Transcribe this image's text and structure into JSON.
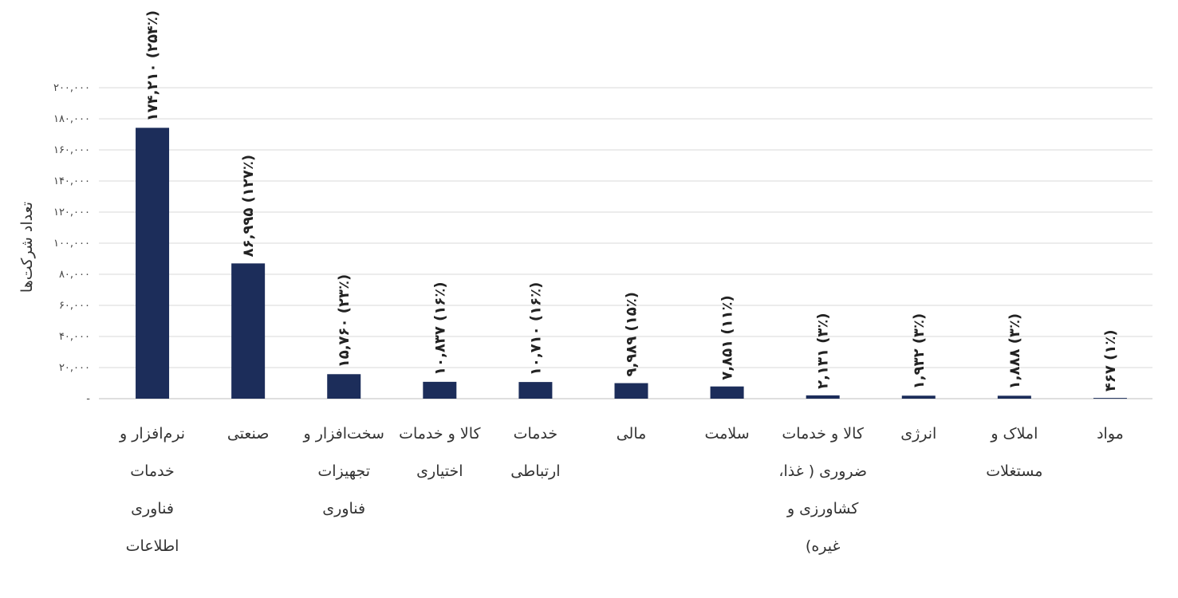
{
  "chart_data": {
    "type": "bar",
    "ylabel": "تعداد شرکت‌ها",
    "ylim": [
      0,
      200000
    ],
    "y_ticks": [
      "-",
      "۲۰,۰۰۰",
      "۴۰,۰۰۰",
      "۶۰,۰۰۰",
      "۸۰,۰۰۰",
      "۱۰۰,۰۰۰",
      "۱۲۰,۰۰۰",
      "۱۴۰,۰۰۰",
      "۱۶۰,۰۰۰",
      "۱۸۰,۰۰۰",
      "۲۰۰,۰۰۰"
    ],
    "y_tick_values": [
      0,
      20000,
      40000,
      60000,
      80000,
      100000,
      120000,
      140000,
      160000,
      180000,
      200000
    ],
    "grid": true,
    "bar_color": "#1c2d5a",
    "categories": [
      "نرم‌افزار و خدمات فناوری اطلاعات",
      "صنعتی",
      "سخت‌افزار و تجهیزات فناوری",
      "کالا و خدمات اختیاری",
      "خدمات ارتباطی",
      "مالی",
      "سلامت",
      "کالا و خدمات ضروری ( غذا، کشاورزی و غیره)",
      "انرژی",
      "املاک و مستغلات",
      "مواد"
    ],
    "values": [
      174210,
      86995,
      15760,
      10837,
      10710,
      9989,
      7851,
      2131,
      1932,
      1888,
      467
    ],
    "data_labels": [
      "۱۷۴,۲۱۰ (۲۵۴٪)",
      "۸۶,۹۹۵ (۱۲۷٪)",
      "۱۵,۷۶۰ (۲۳٪)",
      "۱۰,۸۳۷ (۱۶٪)",
      "۱۰,۷۱۰ (۱۶٪)",
      "۹,۹۸۹ (۱۵٪)",
      "۷,۸۵۱ (۱۱٪)",
      "۲,۱۳۱ (۳٪)",
      "۱,۹۳۲ (۳٪)",
      "۱,۸۸۸ (۳٪)",
      "۴۶۷ (۱٪)"
    ]
  },
  "category_lines": [
    [
      "نرم‌افزار و",
      "خدمات",
      "فناوری",
      "اطلاعات"
    ],
    [
      "صنعتی"
    ],
    [
      "سخت‌افزار و",
      "تجهیزات",
      "فناوری"
    ],
    [
      "کالا و خدمات",
      "اختیاری"
    ],
    [
      "خدمات",
      "ارتباطی"
    ],
    [
      "مالی"
    ],
    [
      "سلامت"
    ],
    [
      "کالا و خدمات",
      "ضروری ( غذا،",
      "کشاورزی و",
      "غیره)"
    ],
    [
      "انرژی"
    ],
    [
      "املاک و",
      "مستغلات"
    ],
    [
      "مواد"
    ]
  ]
}
